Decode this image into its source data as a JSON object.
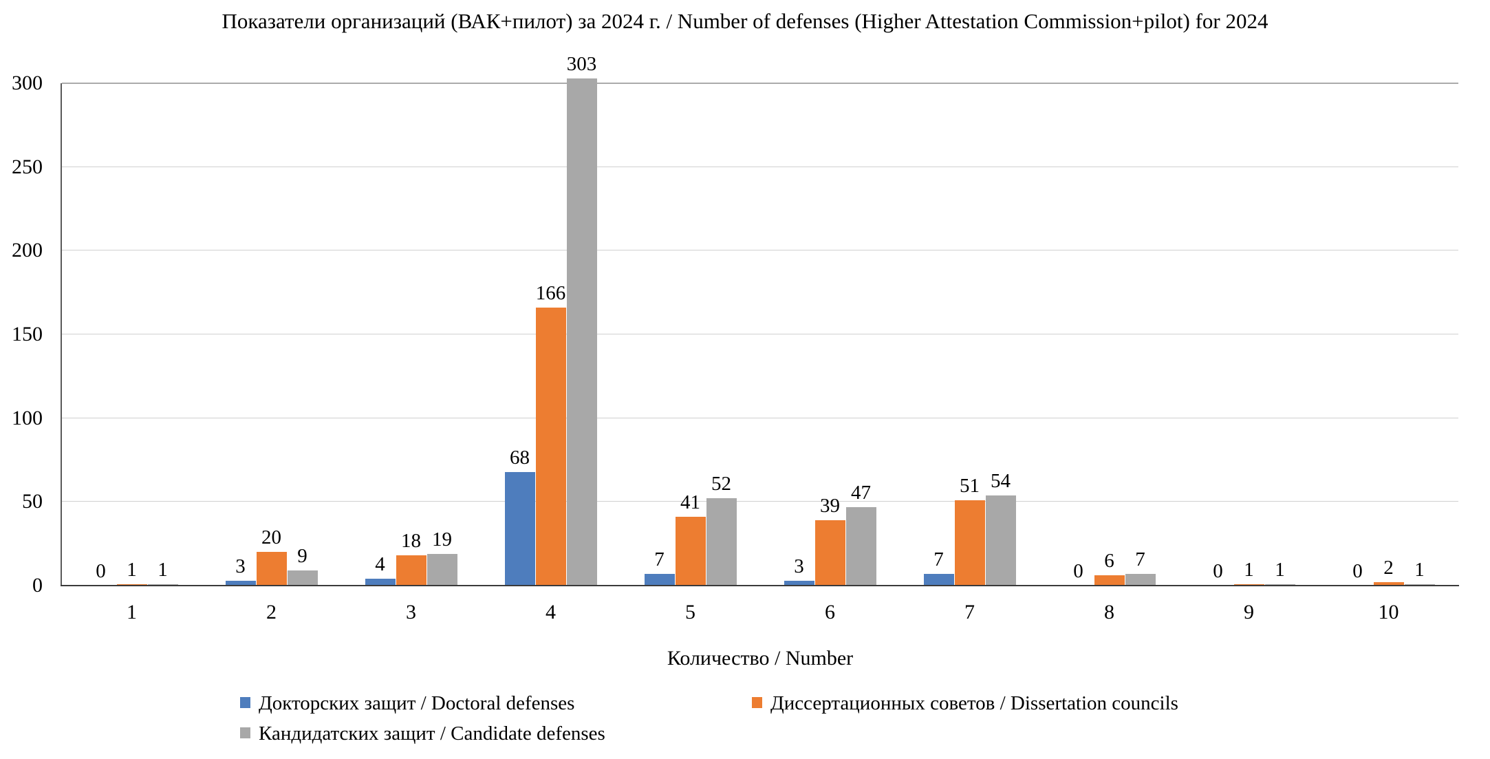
{
  "chart_data": {
    "type": "bar",
    "title": "Показатели организаций (ВАК+пилот) за 2024 г. / Number of defenses (Higher Attestation Commission+pilot) for 2024",
    "xlabel": "Количество / Number",
    "categories": [
      "1",
      "2",
      "3",
      "4",
      "5",
      "6",
      "7",
      "8",
      "9",
      "10"
    ],
    "ylim": [
      0,
      300
    ],
    "yticks": [
      0,
      50,
      100,
      150,
      200,
      250,
      300
    ],
    "grid": true,
    "legend_position": "bottom",
    "series": [
      {
        "name": "Докторских защит / Doctoral defenses",
        "color": "#4E7DBD",
        "values": [
          0,
          3,
          4,
          68,
          7,
          3,
          7,
          0,
          0,
          0
        ]
      },
      {
        "name": "Диссертационных советов / Dissertation councils",
        "color": "#ED7D31",
        "values": [
          1,
          20,
          18,
          166,
          41,
          39,
          51,
          6,
          1,
          2
        ]
      },
      {
        "name": "Кандидатских защит / Candidate defenses",
        "color": "#A8A8A8",
        "values": [
          1,
          9,
          19,
          303,
          52,
          47,
          54,
          7,
          1,
          1
        ]
      }
    ],
    "colors": {
      "axis_line": "#595959",
      "baseline": "#3A3A3A",
      "gridline": "#D0D0D0",
      "top_gridline": "#ABABAB",
      "text": "#000000"
    }
  }
}
